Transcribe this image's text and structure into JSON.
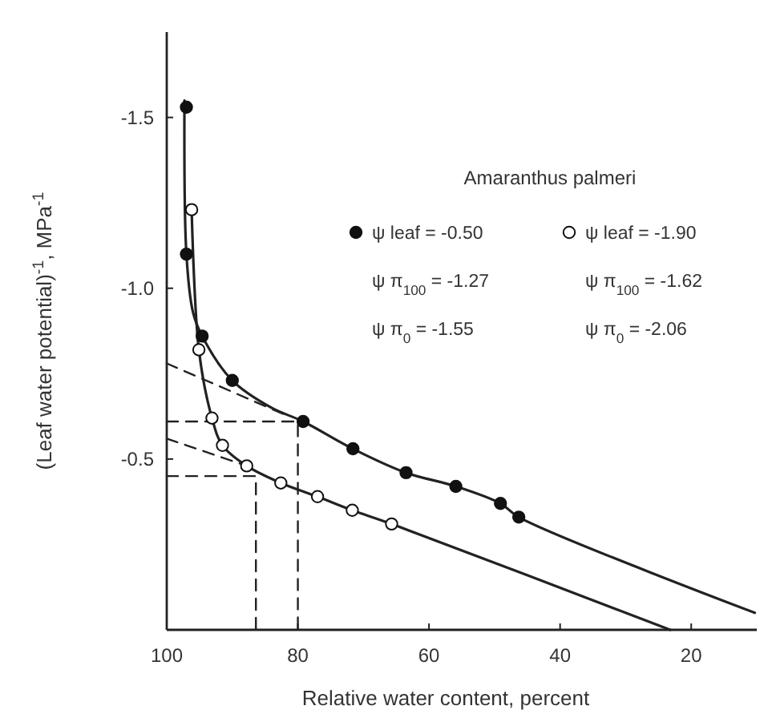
{
  "chart_data": {
    "type": "scatter",
    "xlabel": "Relative water content, percent",
    "ylabel": "(Leaf water potential)$^{-1}$, MPa$^{-1}$",
    "legend_title": "Amaranthus palmeri",
    "xlim": [
      100,
      10
    ],
    "ylim": [
      0,
      -1.75
    ],
    "xticks": [
      100,
      80,
      60,
      40,
      20
    ],
    "yticks": [
      {
        "value": -1.5,
        "label": "-1.5"
      },
      {
        "value": -1.0,
        "label": "-1.0"
      },
      {
        "value": -0.5,
        "label": "-0.5"
      }
    ],
    "legend": "top right",
    "grid": false,
    "marker": "circle",
    "series": [
      {
        "type": "line",
        "color": "#222222",
        "line_style": "solid",
        "marker": "none",
        "x": [
          97.3,
          97.0,
          96.0,
          94.6,
          90.0,
          84.0,
          79.2,
          71.6,
          63.5,
          55.9,
          49.1,
          46.3,
          10.3
        ],
        "values": [
          -1.55,
          -1.1,
          -0.93,
          -0.86,
          -0.73,
          -0.65,
          -0.61,
          -0.53,
          -0.46,
          -0.42,
          -0.37,
          -0.33,
          -0.05
        ]
      },
      {
        "type": "line",
        "color": "#222222",
        "line_style": "solid",
        "marker": "none",
        "x": [
          96.2,
          95.1,
          93.1,
          91.5,
          87.8,
          82.6,
          77.0,
          71.7,
          65.7,
          23.2
        ],
        "values": [
          -1.23,
          -0.82,
          -0.62,
          -0.54,
          -0.48,
          -0.43,
          -0.39,
          -0.35,
          -0.31,
          0
        ]
      },
      {
        "type": "line",
        "color": "#222222",
        "line_style": "dashed",
        "marker": "none",
        "x": [
          100,
          82
        ],
        "values": [
          -0.78,
          -0.63
        ]
      },
      {
        "type": "line",
        "color": "#222222",
        "line_style": "dashed",
        "marker": "none",
        "x": [
          100,
          87.8
        ],
        "values": [
          -0.56,
          -0.48
        ]
      },
      {
        "type": "line",
        "color": "#222222",
        "line_style": "dashed",
        "marker": "none",
        "x": [
          100,
          80,
          80
        ],
        "values": [
          -0.61,
          -0.61,
          0
        ]
      },
      {
        "type": "line",
        "color": "#222222",
        "line_style": "dashed",
        "marker": "none",
        "x": [
          100,
          86.4,
          86.4
        ],
        "values": [
          -0.45,
          -0.45,
          0
        ]
      },
      {
        "name": "ψ leaf = -0.50",
        "color": "#111111",
        "x": [
          97.0,
          97.0,
          94.6,
          90.0,
          79.2,
          71.6,
          63.5,
          55.9,
          49.1,
          46.3
        ],
        "values": [
          -1.53,
          -1.1,
          -0.86,
          -0.73,
          -0.61,
          -0.53,
          -0.46,
          -0.42,
          -0.37,
          -0.33
        ]
      },
      {
        "name": "ψ leaf = -1.90",
        "color": "#ffffff",
        "x": [
          96.2,
          95.1,
          93.1,
          91.5,
          87.8,
          82.6,
          77.0,
          71.7,
          65.7
        ],
        "values": [
          -1.23,
          -0.82,
          -0.62,
          -0.54,
          -0.48,
          -0.43,
          -0.39,
          -0.35,
          -0.31
        ]
      }
    ],
    "annotations": [
      "ψ π$_{100}$ = -1.27",
      "ψ π$_{100}$ = -1.62",
      "ψ π$_{0}$ = -1.55",
      "ψ π$_{0}$ = -2.06"
    ]
  }
}
